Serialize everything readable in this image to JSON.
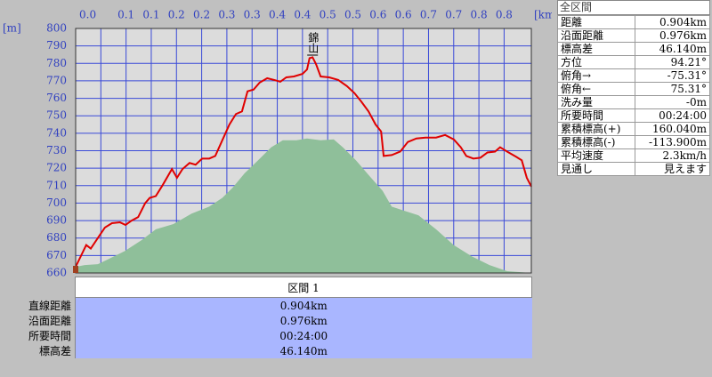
{
  "chart_data": {
    "type": "line",
    "y_unit": "[m]",
    "x_unit": "[km]",
    "xlim": [
      0,
      0.904
    ],
    "ylim": [
      660,
      800
    ],
    "xticks": [
      {
        "value": 0,
        "label": "0.0"
      },
      {
        "value": 0.05,
        "label": null
      },
      0.1,
      {
        "value": 0.15,
        "label": "0.1"
      },
      0.2,
      {
        "value": 0.25,
        "label": "0.2"
      },
      0.3,
      {
        "value": 0.35,
        "label": "0.3"
      },
      0.4,
      {
        "value": 0.45,
        "label": "0.4"
      },
      0.5,
      {
        "value": 0.55,
        "label": "0.5"
      },
      0.6,
      {
        "value": 0.65,
        "label": "0.6"
      },
      0.7,
      {
        "value": 0.75,
        "label": "0.7"
      },
      0.8,
      {
        "value": 0.85,
        "label": "0.8"
      }
    ],
    "yticks": [
      660,
      670,
      680,
      690,
      700,
      710,
      720,
      730,
      740,
      750,
      760,
      770,
      780,
      790,
      800
    ],
    "grid": true,
    "annotations": [
      {
        "text": "錦山",
        "x": 0.47
      }
    ],
    "series": [
      {
        "type": "area",
        "color": "#8fbf9a",
        "x": [
          0,
          0.018,
          0.044,
          0.062,
          0.097,
          0.132,
          0.159,
          0.194,
          0.23,
          0.265,
          0.291,
          0.312,
          0.335,
          0.362,
          0.388,
          0.411,
          0.438,
          0.459,
          0.486,
          0.512,
          0.53,
          0.556,
          0.583,
          0.609,
          0.627,
          0.653,
          0.68,
          0.715,
          0.75,
          0.786,
          0.821,
          0.856,
          0.904
        ],
        "values": [
          663.5,
          664.5,
          665,
          667.5,
          672.5,
          679,
          685,
          688,
          694,
          698,
          703,
          709,
          717,
          724.5,
          732,
          736,
          736,
          737,
          736,
          736.5,
          732,
          724.5,
          715.5,
          707,
          698,
          695.5,
          693,
          685,
          676,
          669.5,
          664.5,
          661,
          660
        ]
      },
      {
        "type": "line",
        "color": "#e00000",
        "x": [
          0,
          0.021,
          0.03,
          0.044,
          0.058,
          0.072,
          0.088,
          0.099,
          0.111,
          0.124,
          0.138,
          0.147,
          0.159,
          0.173,
          0.191,
          0.201,
          0.212,
          0.226,
          0.238,
          0.251,
          0.265,
          0.277,
          0.291,
          0.305,
          0.318,
          0.33,
          0.341,
          0.353,
          0.365,
          0.38,
          0.394,
          0.406,
          0.418,
          0.433,
          0.45,
          0.459,
          0.464,
          0.47,
          0.477,
          0.486,
          0.503,
          0.521,
          0.538,
          0.553,
          0.567,
          0.581,
          0.595,
          0.606,
          0.611,
          0.627,
          0.644,
          0.659,
          0.676,
          0.694,
          0.715,
          0.733,
          0.75,
          0.764,
          0.775,
          0.789,
          0.803,
          0.817,
          0.832,
          0.842,
          0.856,
          0.874,
          0.885,
          0.895,
          0.904
        ],
        "values": [
          663.5,
          676,
          674,
          680,
          686,
          688.5,
          689,
          687.5,
          690,
          692,
          700,
          703,
          704,
          710.5,
          719.5,
          714.5,
          719.5,
          723,
          722,
          725.5,
          725.5,
          727,
          736,
          745,
          751,
          752.5,
          764,
          765,
          769,
          771.5,
          770.5,
          769.5,
          772,
          772.5,
          774,
          776.5,
          783,
          783.5,
          779.5,
          772.5,
          772,
          770.5,
          767,
          763,
          758,
          752.5,
          745,
          741,
          727,
          727.5,
          729.5,
          735,
          737,
          737.5,
          737.5,
          739,
          736.5,
          732,
          727,
          725.5,
          726,
          729,
          729.5,
          732,
          729.5,
          726.5,
          724.5,
          714.5,
          709.5
        ]
      }
    ]
  },
  "panel": {
    "title": "全区間",
    "rows": [
      [
        "距離",
        "0.904km"
      ],
      [
        "沿面距離",
        "0.976km"
      ],
      [
        "標高差",
        "46.140m"
      ],
      [
        "方位",
        "94.21°"
      ],
      [
        "俯角→",
        "-75.31°"
      ],
      [
        "俯角←",
        "75.31°"
      ],
      [
        "洗み量",
        "-0m"
      ],
      [
        "所要時間",
        "00:24:00"
      ],
      [
        "累積標高(+)",
        "160.040m"
      ],
      [
        "累積標高(-)",
        "-113.900m"
      ],
      [
        "平均速度",
        "2.3km/h"
      ],
      [
        "見通し",
        "見えます"
      ]
    ]
  },
  "section": {
    "title": "区間 1",
    "rows": [
      [
        "直線距離",
        "0.904km"
      ],
      [
        "沿面距離",
        "0.976km"
      ],
      [
        "所要時間",
        "00:24:00"
      ],
      [
        "標高差",
        "46.140m"
      ]
    ]
  }
}
